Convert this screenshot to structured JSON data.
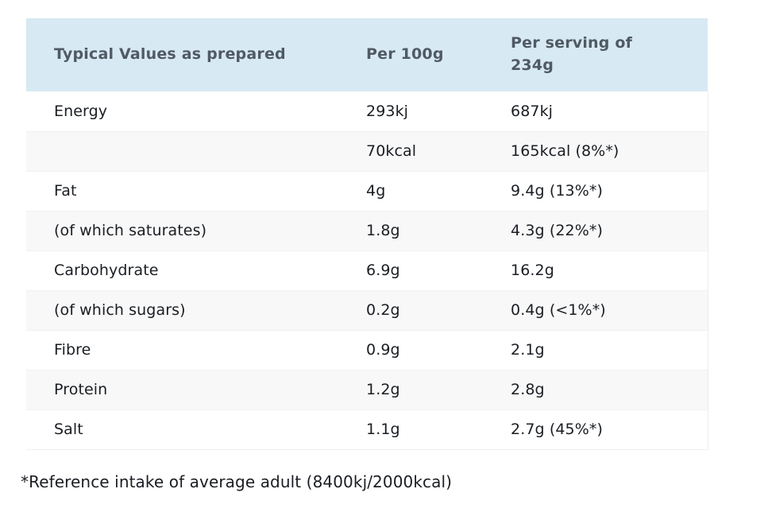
{
  "table": {
    "headers": {
      "label_col": "Typical Values as prepared",
      "per_100g_col": "Per 100g",
      "per_serving_col": "Per serving of 234g"
    },
    "rows": [
      {
        "label": "Energy",
        "per100g": "293kj",
        "perServing": "687kj"
      },
      {
        "label": "",
        "per100g": "70kcal",
        "perServing": "165kcal (8%*)"
      },
      {
        "label": "Fat",
        "per100g": "4g",
        "perServing": "9.4g (13%*)"
      },
      {
        "label": "(of which saturates)",
        "per100g": "1.8g",
        "perServing": "4.3g (22%*)"
      },
      {
        "label": "Carbohydrate",
        "per100g": "6.9g",
        "perServing": "16.2g"
      },
      {
        "label": "(of which sugars)",
        "per100g": "0.2g",
        "perServing": "0.4g (<1%*)"
      },
      {
        "label": "Fibre",
        "per100g": "0.9g",
        "perServing": "2.1g"
      },
      {
        "label": "Protein",
        "per100g": "1.2g",
        "perServing": "2.8g"
      },
      {
        "label": "Salt",
        "per100g": "1.1g",
        "perServing": "2.7g (45%*)"
      }
    ]
  },
  "footnote": "*Reference intake of average adult (8400kj/2000kcal)",
  "colors": {
    "header_bg": "#d7e9f3",
    "header_text": "#505a64",
    "body_text": "#1a1e23",
    "row_alt_bg": "#f8f8f8",
    "row_border": "#f0f1f2"
  }
}
